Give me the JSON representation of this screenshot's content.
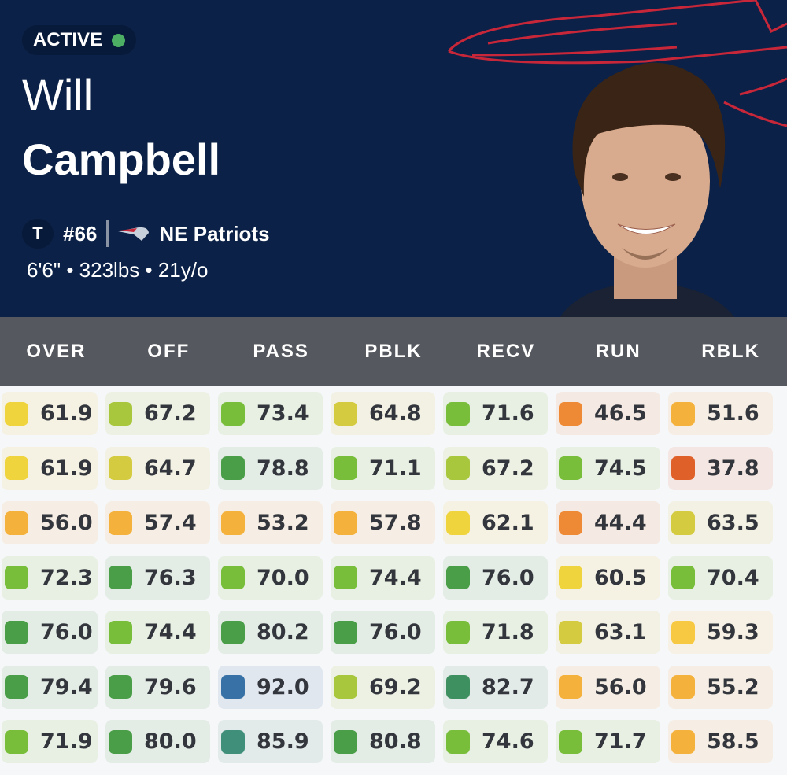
{
  "player": {
    "status": "ACTIVE",
    "status_color": "#4caf64",
    "first_name": "Will",
    "last_name": "Campbell",
    "position": "T",
    "number": "#66",
    "team": "NE Patriots",
    "measurements": "6'6\" • 323lbs • 21y/o"
  },
  "colors": {
    "header_bg": "#0b2147",
    "table_header_bg": "#55585e"
  },
  "columns": [
    "OVER",
    "OFF",
    "PASS",
    "PBLK",
    "RECV",
    "RUN",
    "RBLK"
  ],
  "rows": [
    [
      "61.9",
      "67.2",
      "73.4",
      "64.8",
      "71.6",
      "46.5",
      "51.6"
    ],
    [
      "61.9",
      "64.7",
      "78.8",
      "71.1",
      "67.2",
      "74.5",
      "37.8"
    ],
    [
      "56.0",
      "57.4",
      "53.2",
      "57.8",
      "62.1",
      "44.4",
      "63.5"
    ],
    [
      "72.3",
      "76.3",
      "70.0",
      "74.4",
      "76.0",
      "60.5",
      "70.4"
    ],
    [
      "76.0",
      "74.4",
      "80.2",
      "76.0",
      "71.8",
      "63.1",
      "59.3"
    ],
    [
      "79.4",
      "79.6",
      "92.0",
      "69.2",
      "82.7",
      "56.0",
      "55.2"
    ],
    [
      "71.9",
      "80.0",
      "85.9",
      "80.8",
      "74.6",
      "71.7",
      "58.5"
    ]
  ],
  "grade_scale": [
    {
      "min": 0,
      "color": "#e0602a"
    },
    {
      "min": 40,
      "color": "#ee8a35"
    },
    {
      "min": 50,
      "color": "#f4b13c"
    },
    {
      "min": 59,
      "color": "#f7c942"
    },
    {
      "min": 60,
      "color": "#f0d43e"
    },
    {
      "min": 62.5,
      "color": "#d4cb40"
    },
    {
      "min": 66,
      "color": "#a8c73c"
    },
    {
      "min": 69.5,
      "color": "#78be3a"
    },
    {
      "min": 76,
      "color": "#4a9e48"
    },
    {
      "min": 82,
      "color": "#3f9060"
    },
    {
      "min": 85,
      "color": "#3f8f7a"
    },
    {
      "min": 90,
      "color": "#3771a6"
    }
  ]
}
